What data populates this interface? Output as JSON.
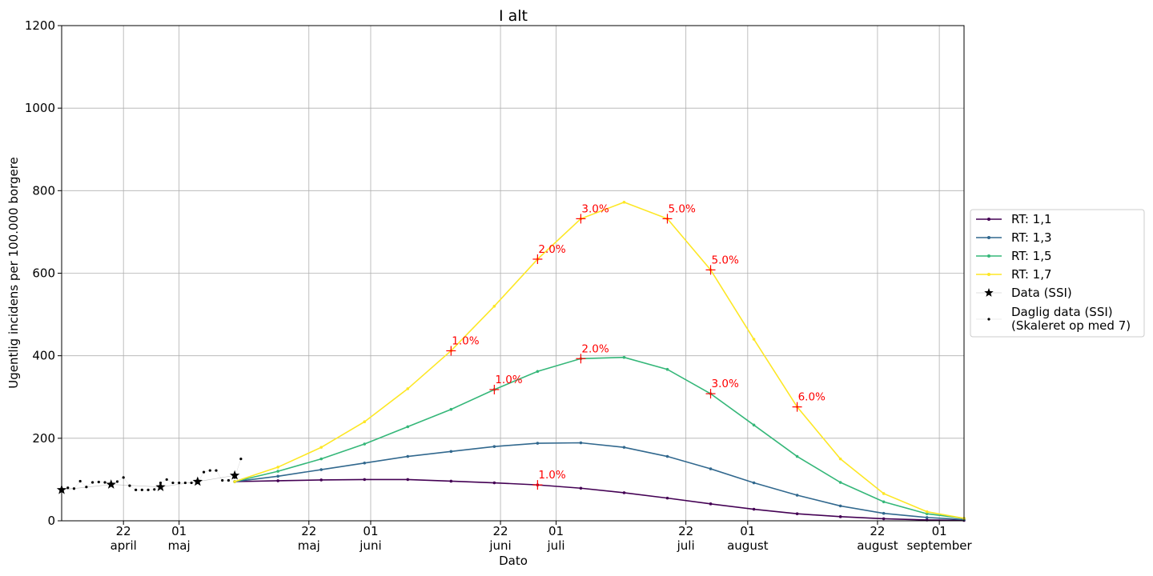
{
  "chart_data": {
    "type": "line",
    "title": "I alt",
    "xlabel": "Dato",
    "ylabel": "Ugentlig incidens per 100.000 borgere",
    "x_date_range": [
      "2020-04-12",
      "2020-09-05"
    ],
    "ylim": [
      0,
      1200
    ],
    "grid": true,
    "legend_position": "right",
    "x_ticks": [
      {
        "date": "2020-04-22",
        "day": "22",
        "month": "april"
      },
      {
        "date": "2020-05-01",
        "day": "01",
        "month": "maj"
      },
      {
        "date": "2020-05-22",
        "day": "22",
        "month": "maj"
      },
      {
        "date": "2020-06-01",
        "day": "01",
        "month": "juni"
      },
      {
        "date": "2020-06-22",
        "day": "22",
        "month": "juni"
      },
      {
        "date": "2020-07-01",
        "day": "01",
        "month": "juli"
      },
      {
        "date": "2020-07-22",
        "day": "22",
        "month": "juli"
      },
      {
        "date": "2020-08-01",
        "day": "01",
        "month": "august"
      },
      {
        "date": "2020-08-22",
        "day": "22",
        "month": "august"
      },
      {
        "date": "2020-09-01",
        "day": "01",
        "month": "september"
      }
    ],
    "y_ticks": [
      "0",
      "200",
      "400",
      "600",
      "800",
      "1000",
      "1200"
    ],
    "scenario_dates": [
      "2020-05-10",
      "2020-05-17",
      "2020-05-24",
      "2020-05-31",
      "2020-06-07",
      "2020-06-14",
      "2020-06-21",
      "2020-06-28",
      "2020-07-05",
      "2020-07-12",
      "2020-07-19",
      "2020-07-26",
      "2020-08-02",
      "2020-08-09",
      "2020-08-16",
      "2020-08-23",
      "2020-08-30",
      "2020-09-05"
    ],
    "series": [
      {
        "name": "RT: 1,1",
        "color": "#440154",
        "values": [
          95,
          97,
          99,
          100,
          100,
          96,
          92,
          87,
          79,
          68,
          55,
          41,
          28,
          17,
          10,
          5,
          2,
          1
        ]
      },
      {
        "name": "RT: 1,3",
        "color": "#31688e",
        "values": [
          95,
          108,
          124,
          140,
          156,
          168,
          180,
          188,
          189,
          178,
          156,
          126,
          92,
          62,
          36,
          18,
          8,
          3
        ]
      },
      {
        "name": "RT: 1,5",
        "color": "#35b779",
        "values": [
          95,
          120,
          150,
          186,
          228,
          270,
          318,
          362,
          393,
          396,
          367,
          308,
          232,
          156,
          93,
          46,
          17,
          6
        ]
      },
      {
        "name": "RT: 1,7",
        "color": "#fde725",
        "values": [
          95,
          130,
          178,
          240,
          320,
          412,
          520,
          634,
          732,
          772,
          732,
          608,
          440,
          276,
          150,
          66,
          22,
          6
        ]
      }
    ],
    "ssi_data": {
      "name": "Data (SSI)",
      "points": [
        {
          "date": "2020-04-12",
          "value": 75
        },
        {
          "date": "2020-04-20",
          "value": 88
        },
        {
          "date": "2020-04-28",
          "value": 82
        },
        {
          "date": "2020-05-04",
          "value": 95
        },
        {
          "date": "2020-05-10",
          "value": 110
        }
      ]
    },
    "daily_data": {
      "name": "Daglig data (SSI)",
      "name_line2": "(Skaleret op med 7)",
      "points": [
        {
          "date": "2020-04-12",
          "value": 72
        },
        {
          "date": "2020-04-13",
          "value": 80
        },
        {
          "date": "2020-04-14",
          "value": 78
        },
        {
          "date": "2020-04-15",
          "value": 96
        },
        {
          "date": "2020-04-16",
          "value": 82
        },
        {
          "date": "2020-04-17",
          "value": 93
        },
        {
          "date": "2020-04-18",
          "value": 94
        },
        {
          "date": "2020-04-19",
          "value": 93
        },
        {
          "date": "2020-04-20",
          "value": 90
        },
        {
          "date": "2020-04-21",
          "value": 95
        },
        {
          "date": "2020-04-22",
          "value": 105
        },
        {
          "date": "2020-04-23",
          "value": 85
        },
        {
          "date": "2020-04-24",
          "value": 75
        },
        {
          "date": "2020-04-25",
          "value": 75
        },
        {
          "date": "2020-04-26",
          "value": 75
        },
        {
          "date": "2020-04-27",
          "value": 76
        },
        {
          "date": "2020-04-28",
          "value": 92
        },
        {
          "date": "2020-04-29",
          "value": 100
        },
        {
          "date": "2020-04-30",
          "value": 92
        },
        {
          "date": "2020-05-01",
          "value": 92
        },
        {
          "date": "2020-05-02",
          "value": 92
        },
        {
          "date": "2020-05-03",
          "value": 92
        },
        {
          "date": "2020-05-04",
          "value": 92
        },
        {
          "date": "2020-05-05",
          "value": 118
        },
        {
          "date": "2020-05-06",
          "value": 122
        },
        {
          "date": "2020-05-07",
          "value": 122
        },
        {
          "date": "2020-05-08",
          "value": 98
        },
        {
          "date": "2020-05-09",
          "value": 98
        },
        {
          "date": "2020-05-10",
          "value": 105
        },
        {
          "date": "2020-05-11",
          "value": 150
        }
      ]
    },
    "annotations": [
      {
        "series": 0,
        "index": 7,
        "text": "1.0%"
      },
      {
        "series": 2,
        "index": 6,
        "text": "1.0%"
      },
      {
        "series": 2,
        "index": 8,
        "text": "2.0%"
      },
      {
        "series": 2,
        "index": 11,
        "text": "3.0%"
      },
      {
        "series": 3,
        "index": 5,
        "text": "1.0%"
      },
      {
        "series": 3,
        "index": 7,
        "text": "2.0%"
      },
      {
        "series": 3,
        "index": 8,
        "text": "3.0%"
      },
      {
        "series": 3,
        "index": 10,
        "text": "5.0%"
      },
      {
        "series": 3,
        "index": 11,
        "text": "5.0%"
      },
      {
        "series": 3,
        "index": 13,
        "text": "6.0%"
      }
    ],
    "annotation_color": "#ff0000"
  }
}
